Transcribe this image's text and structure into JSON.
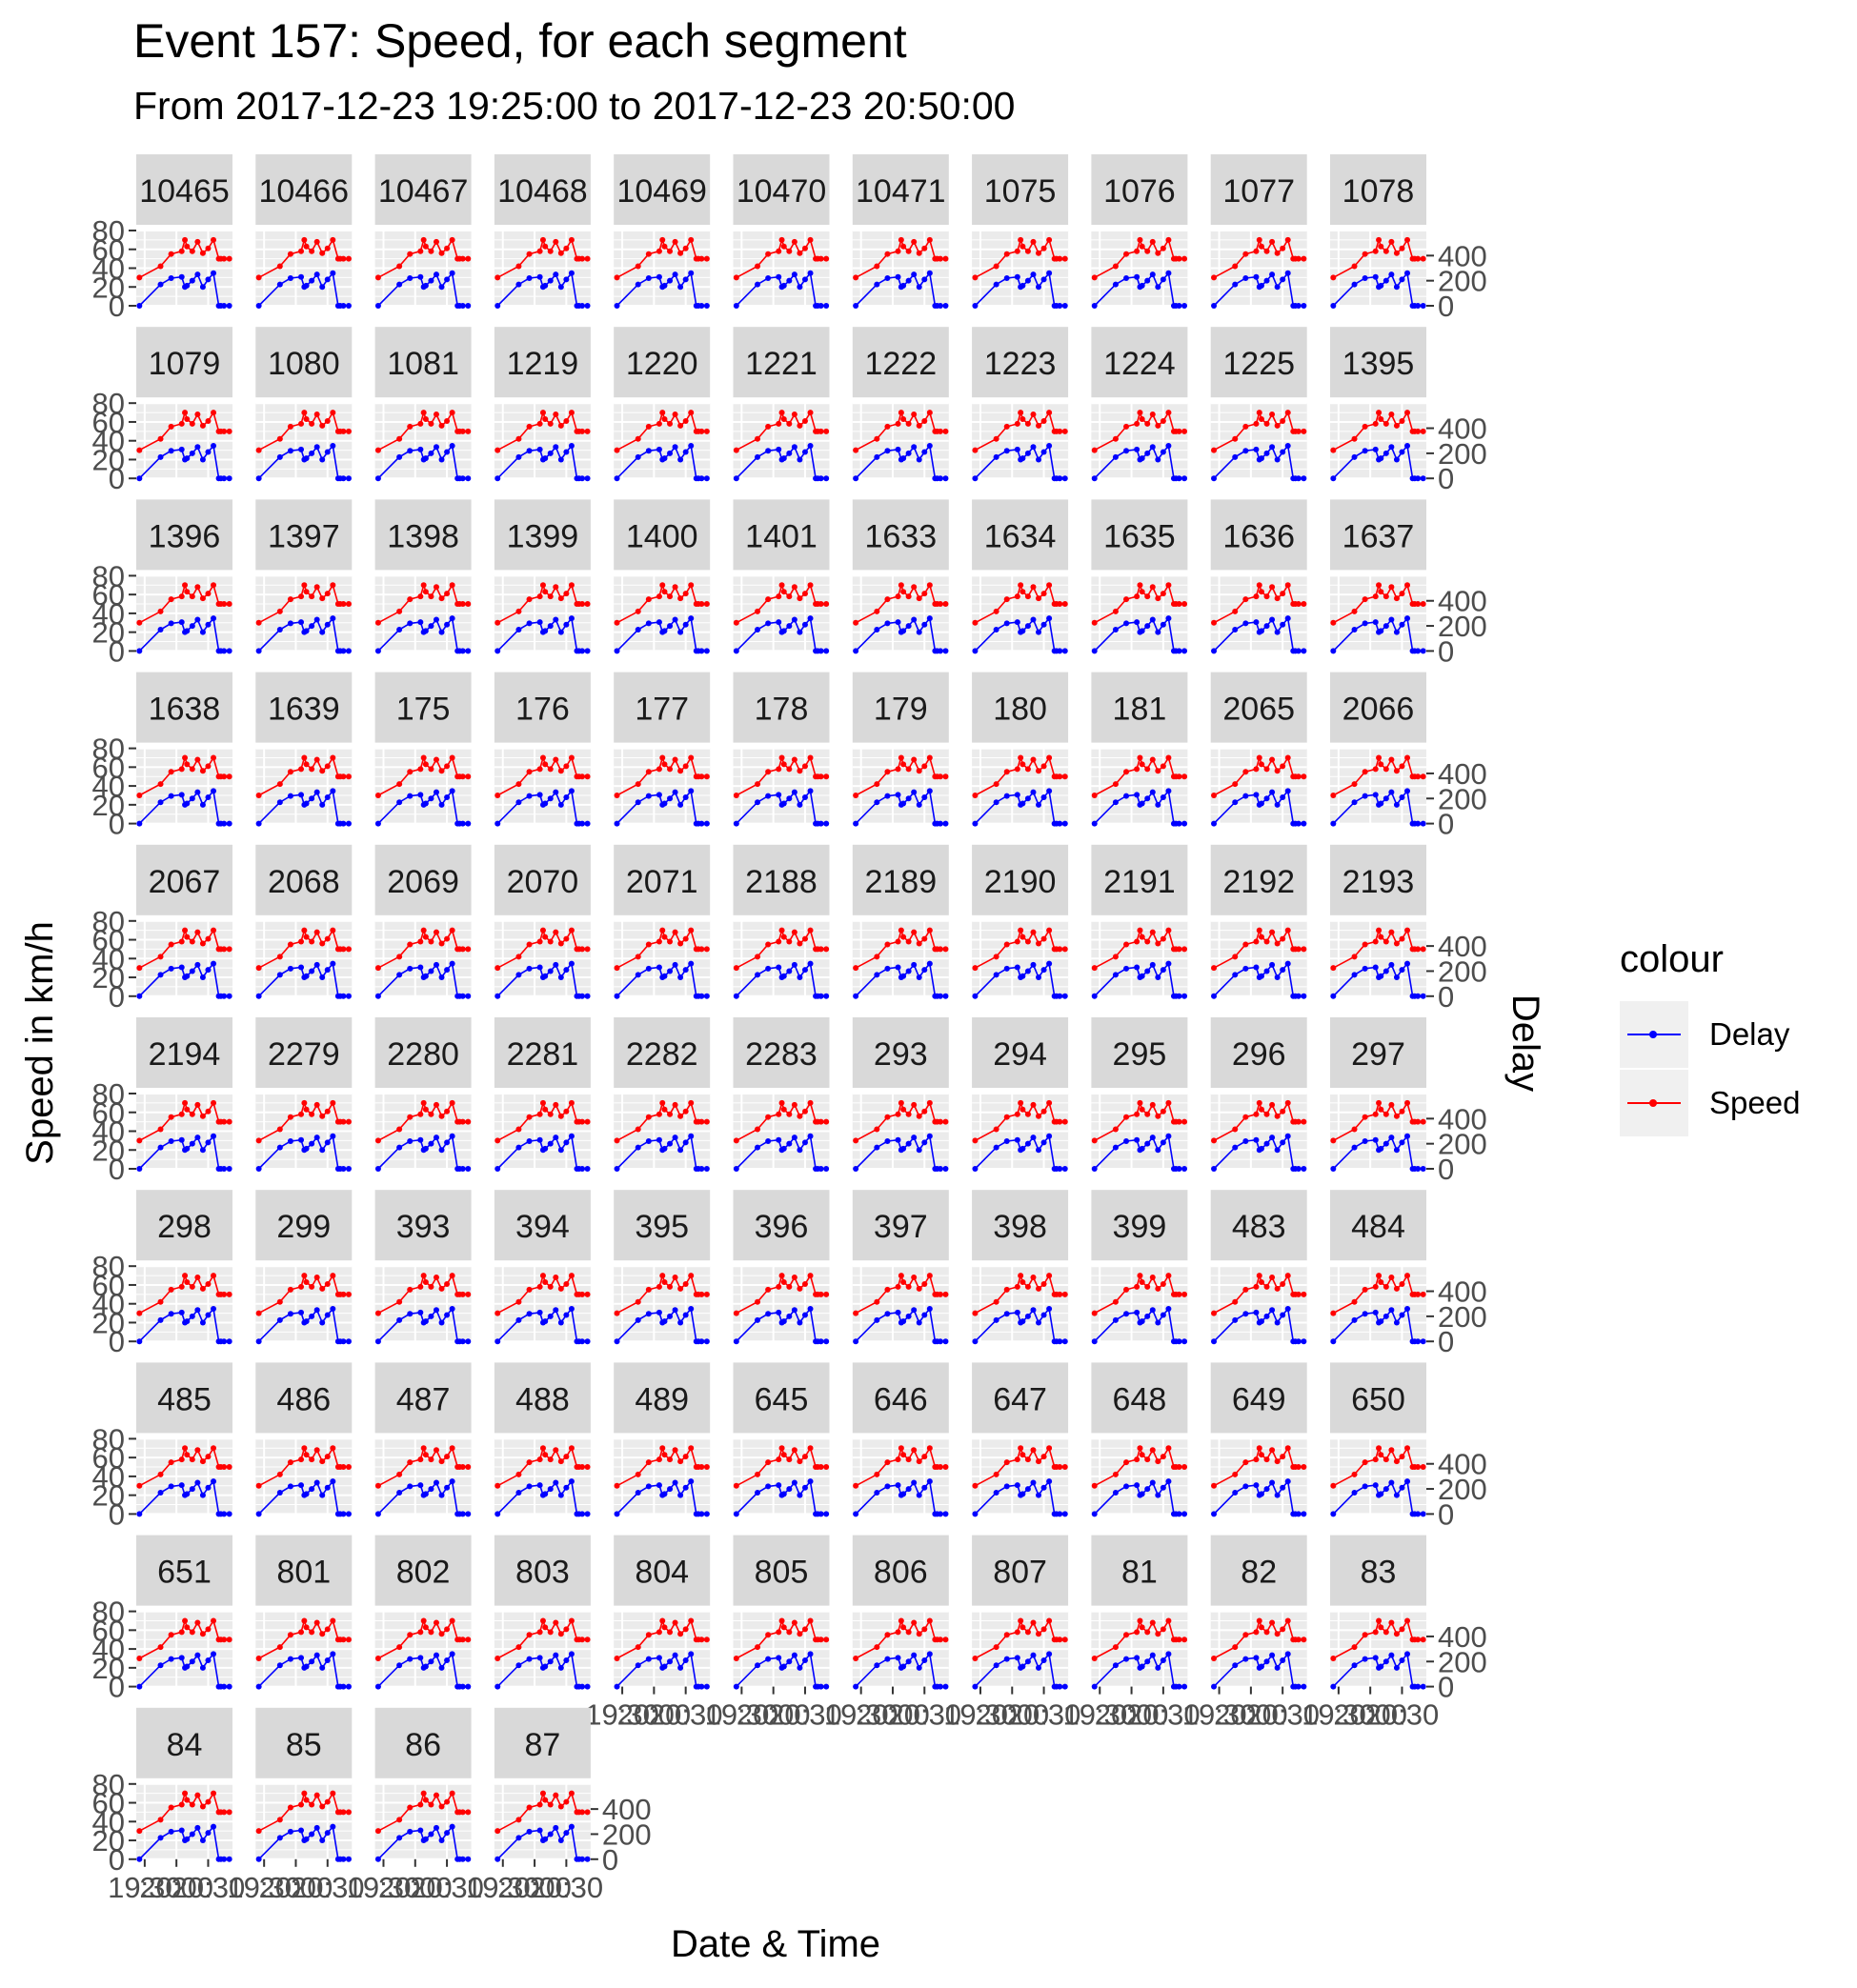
{
  "title": "Event 157: Speed, for each segment",
  "subtitle": "From 2017-12-23 19:25:00 to 2017-12-23 20:50:00",
  "legend": {
    "title": "colour",
    "items": [
      {
        "label": "Delay",
        "color": "#0000ff"
      },
      {
        "label": "Speed",
        "color": "#ff0000"
      }
    ]
  },
  "chart_data": {
    "type": "line",
    "facet_by": "segment",
    "facets": [
      "10465",
      "10466",
      "10467",
      "10468",
      "10469",
      "10470",
      "10471",
      "1075",
      "1076",
      "1077",
      "1078",
      "1079",
      "1080",
      "1081",
      "1219",
      "1220",
      "1221",
      "1222",
      "1223",
      "1224",
      "1225",
      "1395",
      "1396",
      "1397",
      "1398",
      "1399",
      "1400",
      "1401",
      "1633",
      "1634",
      "1635",
      "1636",
      "1637",
      "1638",
      "1639",
      "175",
      "176",
      "177",
      "178",
      "179",
      "180",
      "181",
      "2065",
      "2066",
      "2067",
      "2068",
      "2069",
      "2070",
      "2071",
      "2188",
      "2189",
      "2190",
      "2191",
      "2192",
      "2193",
      "2194",
      "2279",
      "2280",
      "2281",
      "2282",
      "2283",
      "293",
      "294",
      "295",
      "296",
      "297",
      "298",
      "299",
      "393",
      "394",
      "395",
      "396",
      "397",
      "398",
      "399",
      "483",
      "484",
      "485",
      "486",
      "487",
      "488",
      "489",
      "645",
      "646",
      "647",
      "648",
      "649",
      "650",
      "651",
      "801",
      "802",
      "803",
      "804",
      "805",
      "806",
      "807",
      "81",
      "82",
      "83",
      "84",
      "85",
      "86",
      "87"
    ],
    "x": [
      "19:25",
      "19:45",
      "19:55",
      "20:05",
      "20:08",
      "20:10",
      "20:15",
      "20:20",
      "20:25",
      "20:30",
      "20:35",
      "20:40",
      "20:42",
      "20:45",
      "20:50"
    ],
    "series": [
      {
        "name": "Speed",
        "axis": "left",
        "color": "#ff0000",
        "values": [
          30,
          42,
          55,
          58,
          70,
          63,
          58,
          68,
          56,
          61,
          70,
          50,
          50,
          50,
          50
        ]
      },
      {
        "name": "Delay",
        "axis": "right",
        "color": "#0000ff",
        "values": [
          0,
          170,
          220,
          230,
          150,
          160,
          200,
          250,
          150,
          210,
          260,
          0,
          0,
          0,
          0
        ]
      }
    ],
    "xlabel": "Date & Time",
    "ylabel": "Speed in km/h",
    "y2label": "Delay",
    "ylim": [
      0,
      80
    ],
    "y2lim": [
      0,
      600
    ],
    "yticks": [
      "0",
      "20",
      "40",
      "60",
      "80"
    ],
    "y2ticks": [
      "0",
      "200",
      "400"
    ],
    "xticks": [
      "19:30",
      "20:00",
      "20:30"
    ],
    "grid": true,
    "legend_position": "right"
  }
}
